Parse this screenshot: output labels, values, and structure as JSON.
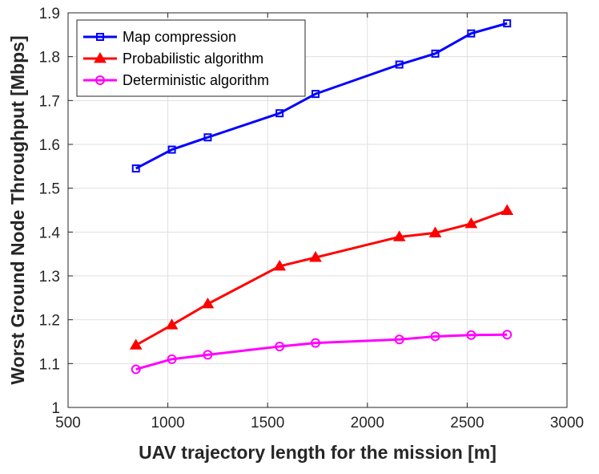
{
  "chart_data": {
    "type": "line",
    "title": "",
    "xlabel": "UAV trajectory length for the mission [m]",
    "ylabel": "Worst Ground Node Throughput [Mbps]",
    "xlim": [
      500,
      3000
    ],
    "ylim": [
      1,
      1.9
    ],
    "xticks": [
      500,
      1000,
      1500,
      2000,
      2500,
      3000
    ],
    "yticks": [
      1,
      1.1,
      1.2,
      1.3,
      1.4,
      1.5,
      1.6,
      1.7,
      1.8,
      1.9
    ],
    "xtick_labels": [
      "500",
      "1000",
      "1500",
      "2000",
      "2500",
      "3000"
    ],
    "ytick_labels": [
      "1",
      "1.1",
      "1.2",
      "1.3",
      "1.4",
      "1.5",
      "1.6",
      "1.7",
      "1.8",
      "1.9"
    ],
    "grid": true,
    "legend_position": "top-left",
    "x": [
      840,
      1020,
      1200,
      1560,
      1740,
      2160,
      2340,
      2520,
      2700
    ],
    "series": [
      {
        "name": "Map compression",
        "color": "#0000ff",
        "marker": "square",
        "values": [
          1.545,
          1.588,
          1.616,
          1.671,
          1.715,
          1.782,
          1.807,
          1.853,
          1.876
        ]
      },
      {
        "name": "Probabilistic algorithm",
        "color": "#ff0000",
        "marker": "triangle",
        "values": [
          1.142,
          1.188,
          1.236,
          1.322,
          1.342,
          1.389,
          1.398,
          1.419,
          1.449
        ]
      },
      {
        "name": "Deterministic algorithm",
        "color": "#ff00ff",
        "marker": "circle",
        "values": [
          1.087,
          1.11,
          1.12,
          1.139,
          1.147,
          1.155,
          1.162,
          1.165,
          1.166
        ]
      }
    ]
  }
}
